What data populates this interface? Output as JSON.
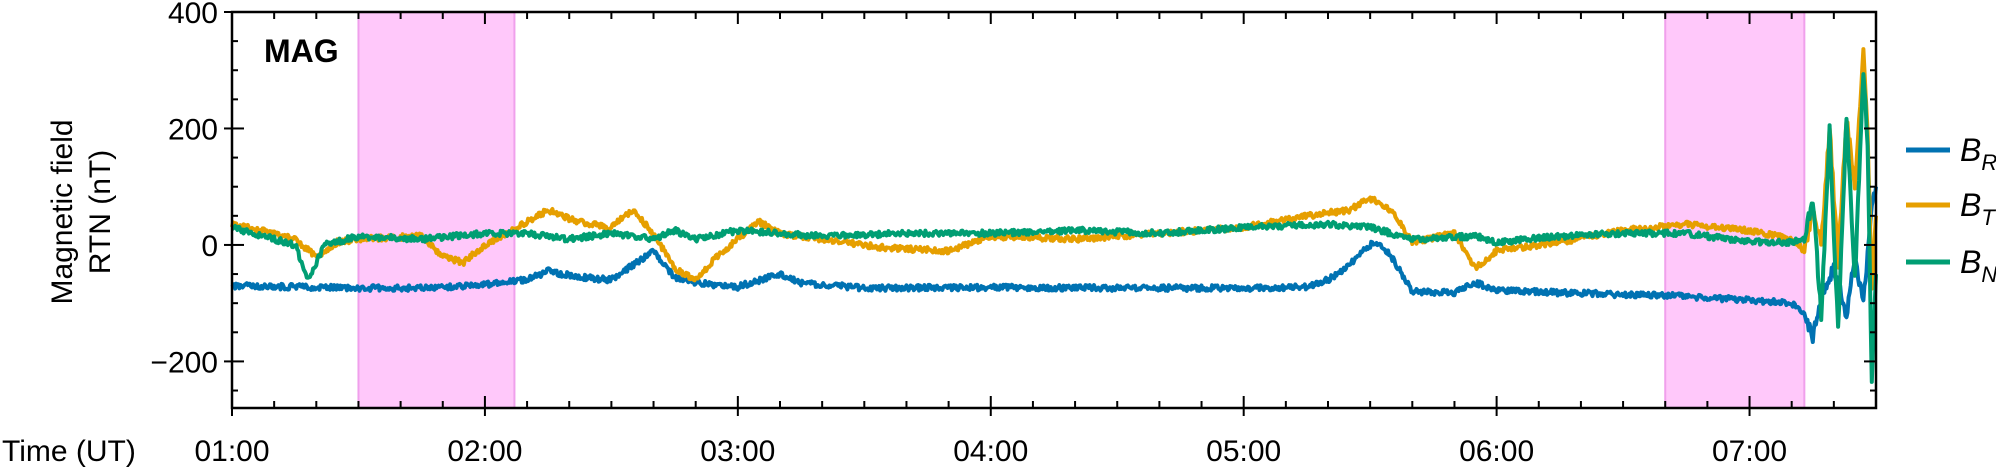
{
  "chart_data": {
    "type": "line",
    "panel_label": "MAG",
    "ylabel_line1": "Magnetic field",
    "ylabel_line2": "RTN (nT)",
    "xlabel": "Time (UT)",
    "xlim": [
      "01:00",
      "07:30"
    ],
    "ylim": [
      -280,
      400
    ],
    "x_ticks": [
      "01:00",
      "02:00",
      "03:00",
      "04:00",
      "05:00",
      "06:00",
      "07:00"
    ],
    "y_ticks": [
      {
        "value": -200,
        "label": "−200"
      },
      {
        "value": 0,
        "label": "0"
      },
      {
        "value": 200,
        "label": "200"
      },
      {
        "value": 400,
        "label": "400"
      }
    ],
    "shaded_intervals": [
      {
        "start": "01:30",
        "end": "02:07",
        "color": "#ffc8fa"
      },
      {
        "start": "06:40",
        "end": "07:13",
        "color": "#ffc8fa"
      }
    ],
    "grid": false,
    "legend_position": "right",
    "series": [
      {
        "name": "B",
        "subscript": "R",
        "color": "#0072b2",
        "points": [
          [
            "01:00",
            -70
          ],
          [
            "01:15",
            -72
          ],
          [
            "01:30",
            -74
          ],
          [
            "01:45",
            -74
          ],
          [
            "02:00",
            -68
          ],
          [
            "02:10",
            -60
          ],
          [
            "02:15",
            -45
          ],
          [
            "02:22",
            -55
          ],
          [
            "02:30",
            -60
          ],
          [
            "02:35",
            -35
          ],
          [
            "02:40",
            -10
          ],
          [
            "02:45",
            -55
          ],
          [
            "02:50",
            -65
          ],
          [
            "03:00",
            -72
          ],
          [
            "03:10",
            -50
          ],
          [
            "03:15",
            -65
          ],
          [
            "03:30",
            -74
          ],
          [
            "04:00",
            -73
          ],
          [
            "04:30",
            -74
          ],
          [
            "05:00",
            -74
          ],
          [
            "05:15",
            -72
          ],
          [
            "05:20",
            -60
          ],
          [
            "05:25",
            -35
          ],
          [
            "05:30",
            0
          ],
          [
            "05:32",
            5
          ],
          [
            "05:35",
            -20
          ],
          [
            "05:40",
            -80
          ],
          [
            "05:50",
            -82
          ],
          [
            "05:55",
            -65
          ],
          [
            "06:00",
            -78
          ],
          [
            "06:15",
            -82
          ],
          [
            "06:30",
            -85
          ],
          [
            "06:45",
            -88
          ],
          [
            "07:00",
            -95
          ],
          [
            "07:10",
            -100
          ],
          [
            "07:13",
            -120
          ],
          [
            "07:15",
            -160
          ],
          [
            "07:17",
            -90
          ],
          [
            "07:20",
            -40
          ],
          [
            "07:23",
            -120
          ],
          [
            "07:25",
            -20
          ],
          [
            "07:27",
            -100
          ],
          [
            "07:29",
            60
          ],
          [
            "07:30",
            100
          ]
        ]
      },
      {
        "name": "B",
        "subscript": "T",
        "color": "#e69f00",
        "points": [
          [
            "01:00",
            35
          ],
          [
            "01:10",
            20
          ],
          [
            "01:15",
            10
          ],
          [
            "01:20",
            -20
          ],
          [
            "01:25",
            5
          ],
          [
            "01:30",
            10
          ],
          [
            "01:45",
            15
          ],
          [
            "01:50",
            -20
          ],
          [
            "01:55",
            -30
          ],
          [
            "02:00",
            0
          ],
          [
            "02:10",
            40
          ],
          [
            "02:15",
            60
          ],
          [
            "02:22",
            40
          ],
          [
            "02:30",
            30
          ],
          [
            "02:35",
            60
          ],
          [
            "02:40",
            20
          ],
          [
            "02:45",
            -40
          ],
          [
            "02:50",
            -60
          ],
          [
            "02:55",
            -20
          ],
          [
            "03:00",
            10
          ],
          [
            "03:05",
            40
          ],
          [
            "03:10",
            20
          ],
          [
            "03:20",
            10
          ],
          [
            "03:35",
            -5
          ],
          [
            "03:50",
            -10
          ],
          [
            "04:00",
            15
          ],
          [
            "04:20",
            10
          ],
          [
            "04:40",
            20
          ],
          [
            "05:00",
            30
          ],
          [
            "05:15",
            50
          ],
          [
            "05:25",
            60
          ],
          [
            "05:30",
            80
          ],
          [
            "05:35",
            60
          ],
          [
            "05:40",
            5
          ],
          [
            "05:50",
            20
          ],
          [
            "05:55",
            -40
          ],
          [
            "06:00",
            -10
          ],
          [
            "06:15",
            5
          ],
          [
            "06:30",
            25
          ],
          [
            "06:45",
            35
          ],
          [
            "07:00",
            25
          ],
          [
            "07:10",
            10
          ],
          [
            "07:13",
            -10
          ],
          [
            "07:15",
            60
          ],
          [
            "07:17",
            0
          ],
          [
            "07:19",
            200
          ],
          [
            "07:21",
            -30
          ],
          [
            "07:23",
            220
          ],
          [
            "07:25",
            100
          ],
          [
            "07:27",
            330
          ],
          [
            "07:28",
            200
          ],
          [
            "07:29",
            -80
          ],
          [
            "07:30",
            50
          ]
        ]
      },
      {
        "name": "B",
        "subscript": "N",
        "color": "#009e73",
        "points": [
          [
            "01:00",
            30
          ],
          [
            "01:10",
            10
          ],
          [
            "01:15",
            0
          ],
          [
            "01:18",
            -60
          ],
          [
            "01:22",
            0
          ],
          [
            "01:30",
            15
          ],
          [
            "01:45",
            10
          ],
          [
            "02:00",
            20
          ],
          [
            "02:10",
            20
          ],
          [
            "02:20",
            10
          ],
          [
            "02:30",
            20
          ],
          [
            "02:40",
            10
          ],
          [
            "02:45",
            25
          ],
          [
            "02:50",
            10
          ],
          [
            "03:00",
            25
          ],
          [
            "03:10",
            20
          ],
          [
            "03:20",
            15
          ],
          [
            "03:40",
            20
          ],
          [
            "04:00",
            20
          ],
          [
            "04:20",
            25
          ],
          [
            "04:40",
            20
          ],
          [
            "05:00",
            30
          ],
          [
            "05:20",
            35
          ],
          [
            "05:30",
            30
          ],
          [
            "05:40",
            10
          ],
          [
            "05:55",
            15
          ],
          [
            "06:00",
            5
          ],
          [
            "06:15",
            15
          ],
          [
            "06:30",
            20
          ],
          [
            "06:45",
            20
          ],
          [
            "07:00",
            5
          ],
          [
            "07:10",
            5
          ],
          [
            "07:13",
            10
          ],
          [
            "07:15",
            80
          ],
          [
            "07:17",
            -120
          ],
          [
            "07:19",
            200
          ],
          [
            "07:21",
            -150
          ],
          [
            "07:23",
            220
          ],
          [
            "07:25",
            -60
          ],
          [
            "07:27",
            300
          ],
          [
            "07:28",
            180
          ],
          [
            "07:29",
            -230
          ],
          [
            "07:30",
            -50
          ]
        ]
      }
    ]
  }
}
